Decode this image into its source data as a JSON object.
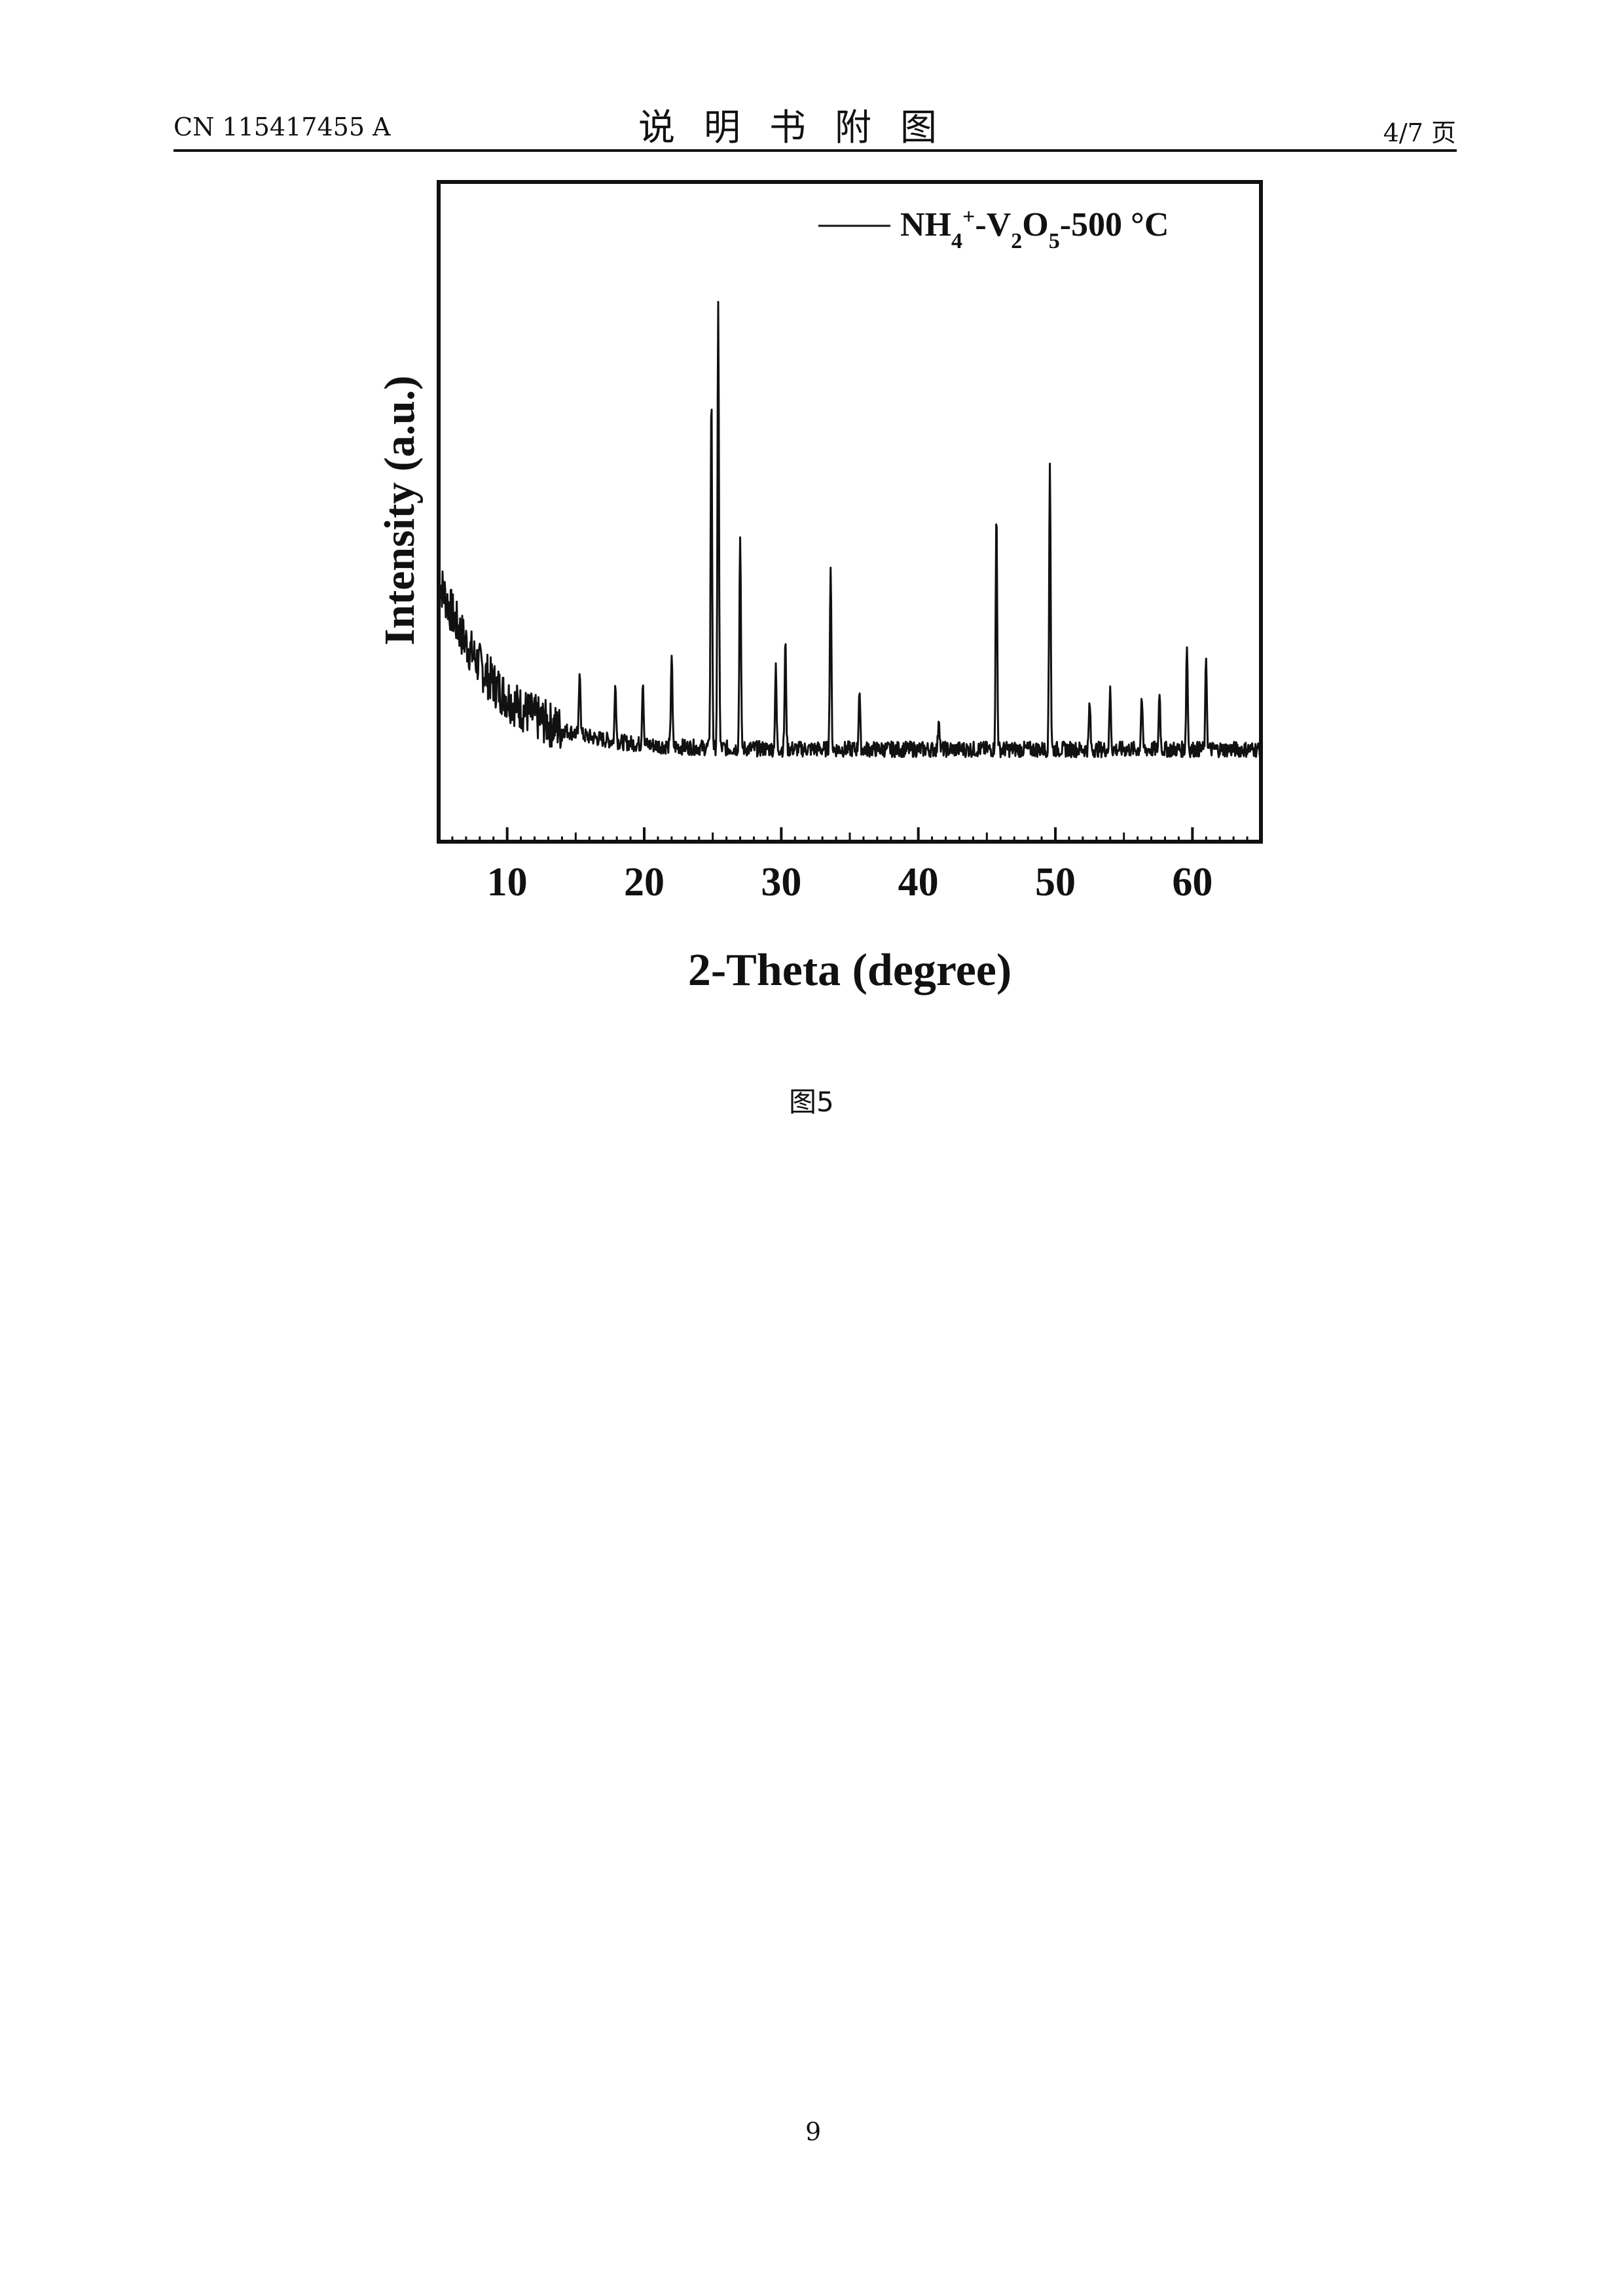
{
  "header": {
    "doc_id": "CN 115417455 A",
    "title": "说明书附图",
    "page_count": "4/7 页"
  },
  "figure": {
    "caption": "图5"
  },
  "footer": {
    "page_number": "9"
  },
  "chart_data": {
    "type": "line",
    "title": "",
    "xlabel": "2-Theta (degree)",
    "ylabel": "Intensity (a.u.)",
    "xlim": [
      5,
      65
    ],
    "ylim": [
      0,
      1
    ],
    "xticks": [
      10,
      20,
      30,
      40,
      50,
      60
    ],
    "x_tick_labels": [
      "10",
      "20",
      "30",
      "40",
      "50",
      "60"
    ],
    "grid": false,
    "legend_position": "top-right",
    "series": [
      {
        "name": "NH4+-V2O5-500 °C",
        "color": "#111111",
        "peaks": [
          {
            "x": 15.3,
            "y": 0.25
          },
          {
            "x": 17.9,
            "y": 0.24
          },
          {
            "x": 19.9,
            "y": 0.25
          },
          {
            "x": 22.0,
            "y": 0.29
          },
          {
            "x": 24.9,
            "y": 0.69
          },
          {
            "x": 25.4,
            "y": 0.82
          },
          {
            "x": 27.0,
            "y": 0.48
          },
          {
            "x": 29.6,
            "y": 0.27
          },
          {
            "x": 30.3,
            "y": 0.31
          },
          {
            "x": 33.6,
            "y": 0.43
          },
          {
            "x": 35.7,
            "y": 0.24
          },
          {
            "x": 41.5,
            "y": 0.2
          },
          {
            "x": 45.7,
            "y": 0.51
          },
          {
            "x": 49.6,
            "y": 0.59
          },
          {
            "x": 52.5,
            "y": 0.22
          },
          {
            "x": 54.0,
            "y": 0.24
          },
          {
            "x": 56.3,
            "y": 0.23
          },
          {
            "x": 57.6,
            "y": 0.24
          },
          {
            "x": 59.6,
            "y": 0.31
          },
          {
            "x": 61.0,
            "y": 0.29
          }
        ]
      }
    ]
  }
}
